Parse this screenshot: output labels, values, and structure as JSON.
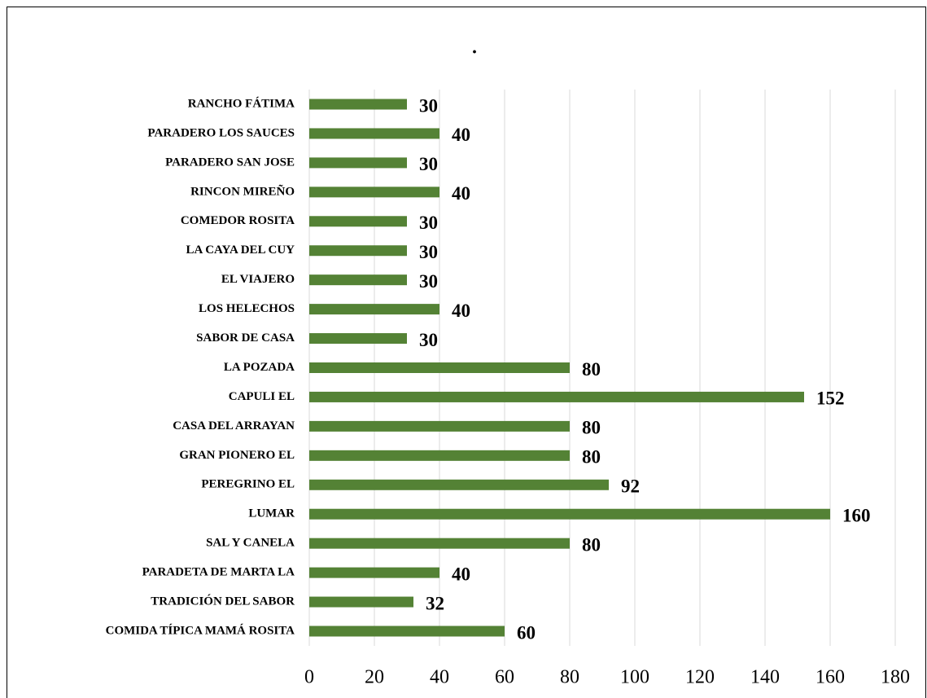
{
  "chart_data": {
    "type": "bar",
    "orientation": "horizontal",
    "title": ".",
    "categories": [
      "RANCHO FÁTIMA",
      "PARADERO LOS SAUCES",
      "PARADERO SAN JOSE",
      "RINCON MIREÑO",
      "COMEDOR ROSITA",
      "LA CAYA DEL CUY",
      "EL VIAJERO",
      "LOS HELECHOS",
      "SABOR DE CASA",
      "LA POZADA",
      "CAPULI EL",
      "CASA DEL ARRAYAN",
      "GRAN PIONERO EL",
      "PEREGRINO EL",
      "LUMAR",
      "SAL Y CANELA",
      "PARADETA DE MARTA LA",
      "TRADICIÓN DEL SABOR",
      "COMIDA TÍPICA MAMÁ ROSITA"
    ],
    "values": [
      30,
      40,
      30,
      40,
      30,
      30,
      30,
      40,
      30,
      80,
      152,
      80,
      80,
      92,
      160,
      80,
      40,
      32,
      60
    ],
    "color": "#548235",
    "xlim": [
      0,
      180
    ],
    "xticks": [
      0,
      20,
      40,
      60,
      80,
      100,
      120,
      140,
      160,
      180
    ],
    "grid": true
  }
}
